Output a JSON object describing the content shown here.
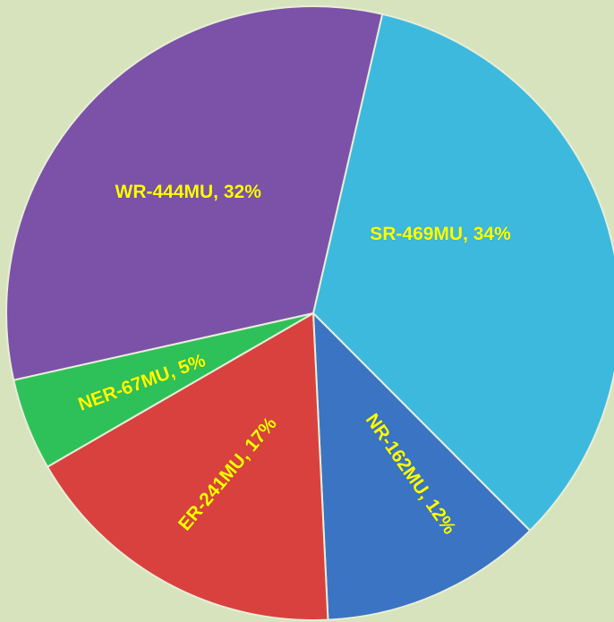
{
  "chart_data": {
    "type": "pie",
    "values": [
      469,
      162,
      241,
      67,
      444
    ],
    "value_labels": [
      "SR-469MU, 34%",
      "NR-162MU, 12%",
      "ER-241MU, 17%",
      "NER-67MU, 5%",
      "WR-444MU, 32%"
    ],
    "colors": [
      "#3db9de",
      "#3b74c2",
      "#d9413f",
      "#2fc159",
      "#7b52a8"
    ]
  }
}
